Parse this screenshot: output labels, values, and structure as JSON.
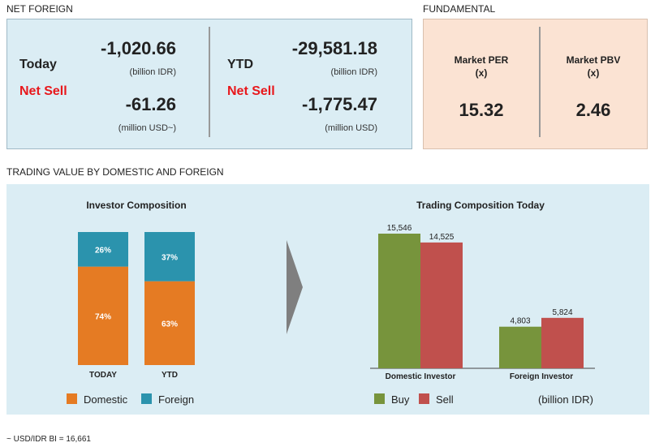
{
  "net_foreign": {
    "section_label": "NET FOREIGN",
    "today": {
      "label": "Today",
      "status": "Net Sell",
      "idr_value": "-1,020.66",
      "idr_unit": "(billion IDR)",
      "usd_value": "-61.26",
      "usd_unit": "(million USD~)"
    },
    "ytd": {
      "label": "YTD",
      "status": "Net Sell",
      "idr_value": "-29,581.18",
      "idr_unit": "(billion IDR)",
      "usd_value": "-1,775.47",
      "usd_unit": "(million USD)"
    }
  },
  "fundamental": {
    "section_label": "FUNDAMENTAL",
    "per": {
      "title": "Market PER",
      "sub": "(x)",
      "value": "15.32"
    },
    "pbv": {
      "title": "Market PBV",
      "sub": "(x)",
      "value": "2.46"
    }
  },
  "trading_section_label": "TRADING VALUE BY DOMESTIC AND FOREIGN",
  "colors": {
    "domestic": "#e57b23",
    "foreign": "#2b93ad",
    "buy": "#77943c",
    "sell": "#c0504d",
    "arrow": "#7f7f7f"
  },
  "chart_data": [
    {
      "type": "bar",
      "stacked": true,
      "title": "Investor Composition",
      "categories": [
        "TODAY",
        "YTD"
      ],
      "series": [
        {
          "name": "Domestic",
          "values": [
            74,
            63
          ],
          "labels": [
            "74%",
            "63%"
          ]
        },
        {
          "name": "Foreign",
          "values": [
            26,
            37
          ],
          "labels": [
            "26%",
            "37%"
          ]
        }
      ],
      "ylim": [
        0,
        100
      ],
      "legend": "bottom"
    },
    {
      "type": "bar",
      "title": "Trading Composition Today",
      "categories": [
        "Domestic Investor",
        "Foreign Investor"
      ],
      "series": [
        {
          "name": "Buy",
          "values": [
            15546,
            4803
          ],
          "labels": [
            "15,546",
            "4,803"
          ]
        },
        {
          "name": "Sell",
          "values": [
            14525,
            5824
          ],
          "labels": [
            "14,525",
            "5,824"
          ]
        }
      ],
      "unit_label": "(billion IDR)",
      "ylim": [
        0,
        16000
      ],
      "legend": "bottom"
    }
  ],
  "footnote": "~ USD/IDR BI = 16,661"
}
